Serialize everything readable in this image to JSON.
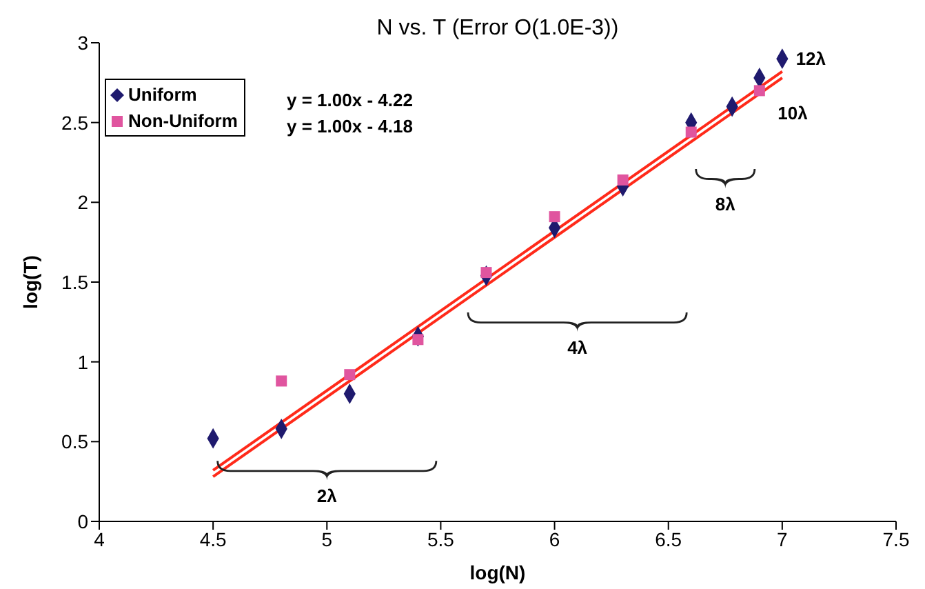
{
  "chart_data": {
    "type": "scatter",
    "title": "N vs. T  (Error O(1.0E-3))",
    "xlabel": "log(N)",
    "ylabel": "log(T)",
    "xlim": [
      4,
      7.5
    ],
    "xticks": [
      4,
      4.5,
      5,
      5.5,
      6,
      6.5,
      7,
      7.5
    ],
    "ylim": [
      0,
      3
    ],
    "yticks": [
      0,
      0.5,
      1,
      1.5,
      2,
      2.5,
      3
    ],
    "grid": false,
    "legend": "top left",
    "series": [
      {
        "name": "Uniform",
        "color": "#1f1a6e",
        "marker": "diamond",
        "x": [
          4.5,
          4.8,
          5.1,
          5.4,
          5.7,
          6.0,
          6.3,
          6.6,
          6.78,
          6.9,
          7.0
        ],
        "values": [
          0.52,
          0.58,
          0.8,
          1.16,
          1.54,
          1.84,
          2.1,
          2.5,
          2.6,
          2.78,
          2.9
        ]
      },
      {
        "name": "Non-Uniform",
        "color": "#e0559f",
        "marker": "square",
        "x": [
          4.8,
          5.1,
          5.4,
          5.7,
          6.0,
          6.3,
          6.6,
          6.9
        ],
        "values": [
          0.88,
          0.92,
          1.14,
          1.56,
          1.91,
          2.14,
          2.44,
          2.7
        ]
      },
      {
        "type": "line",
        "color": "#ff2a1a",
        "x": [
          4.5,
          7.0
        ],
        "values": [
          0.28,
          2.78
        ]
      },
      {
        "type": "line",
        "color": "#ff2a1a",
        "x": [
          4.5,
          7.0
        ],
        "values": [
          0.32,
          2.82
        ]
      }
    ],
    "annotations": [
      "y = 1.00x - 4.22",
      "y = 1.00x - 4.18",
      "2λ",
      "4λ",
      "8λ",
      "10λ",
      "12λ"
    ]
  }
}
